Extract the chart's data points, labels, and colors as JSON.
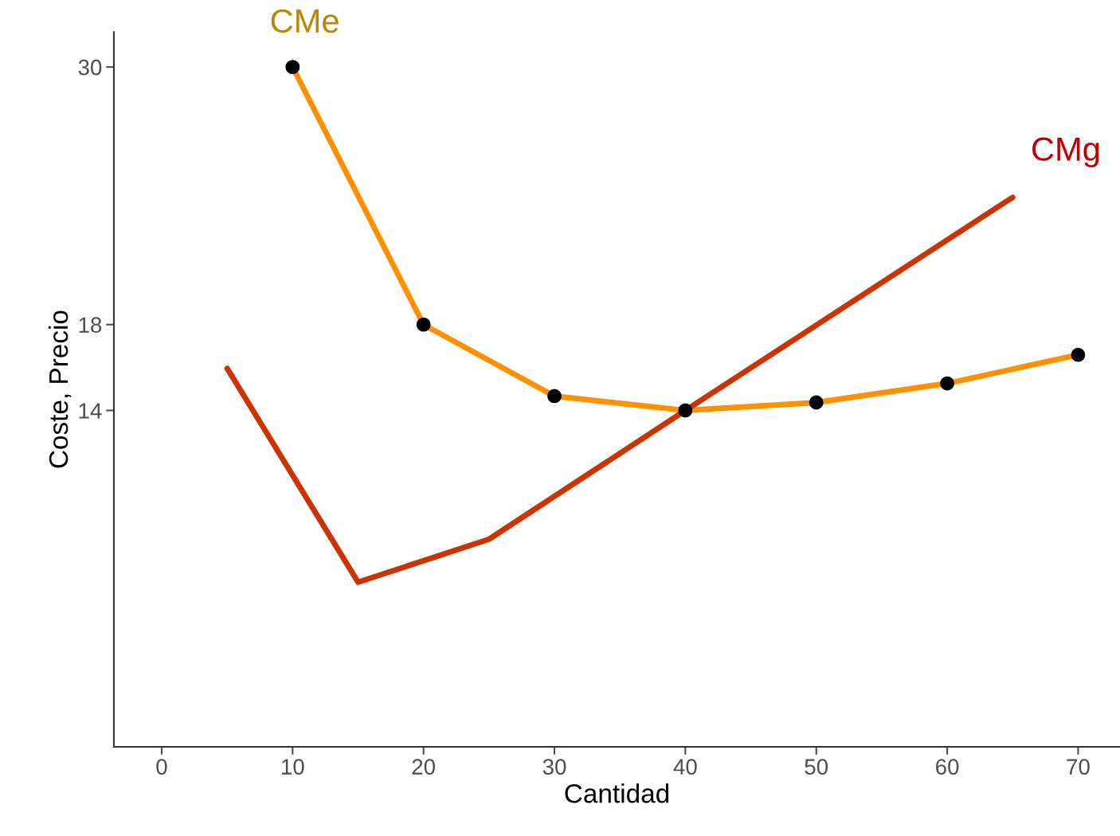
{
  "chart_data": {
    "type": "line",
    "xlabel": "Cantidad",
    "ylabel": "Coste, Precio",
    "xlim": [
      -3.65,
      73.2
    ],
    "ylim": [
      -1.67,
      31.63
    ],
    "xticks": [
      0,
      10,
      20,
      30,
      40,
      50,
      60,
      70
    ],
    "yticks": [
      14,
      18,
      30
    ],
    "grid": false,
    "legend": false,
    "series": [
      {
        "name": "CMe",
        "color": "#ff9000",
        "marker": "circle",
        "x": [
          10,
          20,
          30,
          40,
          50,
          60,
          70
        ],
        "values": [
          30,
          18,
          14.67,
          14,
          14.37,
          15.26,
          16.59
        ]
      },
      {
        "name": "CMg",
        "color": "#cc3300",
        "marker": "none",
        "x": [
          5,
          15,
          25,
          40,
          65
        ],
        "values": [
          15.96,
          6.0,
          8.0,
          14,
          23.93
        ]
      }
    ]
  }
}
